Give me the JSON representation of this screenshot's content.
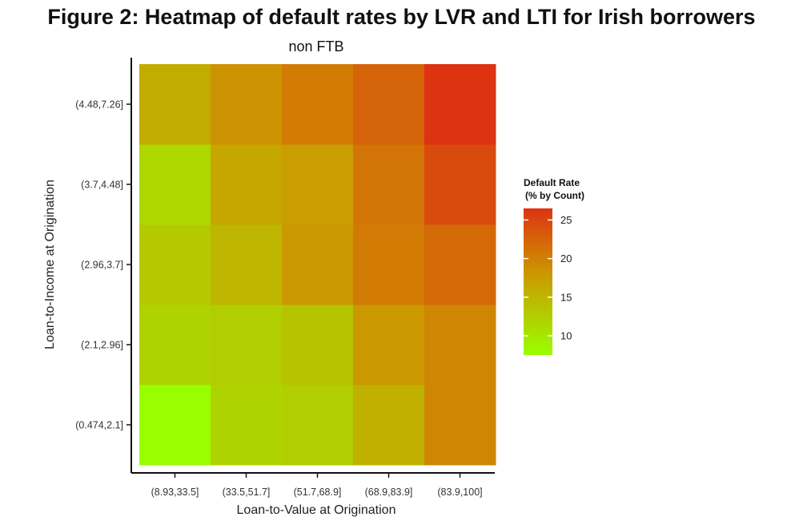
{
  "chart_data": {
    "type": "heatmap",
    "title": "Figure 2: Heatmap of default rates by LVR and LTI for Irish borrowers",
    "subtitle": "non FTB",
    "xlabel": "Loan-to-Value at Origination",
    "ylabel": "Loan-to-Income at Origination",
    "x_categories": [
      "(8.93,33.5]",
      "(33.5,51.7]",
      "(51.7,68.9]",
      "(68.9,83.9]",
      "(83.9,100]"
    ],
    "y_categories": [
      "(0.474,2.1]",
      "(2.1,2.96]",
      "(2.96,3.7]",
      "(3.7,4.48]",
      "(4.48,7.26]"
    ],
    "values": [
      [
        7.5,
        12.0,
        12.5,
        15.5,
        19.5
      ],
      [
        12.0,
        12.5,
        13.5,
        18.0,
        19.5
      ],
      [
        13.0,
        15.0,
        18.0,
        20.5,
        22.0
      ],
      [
        11.5,
        16.5,
        17.5,
        21.0,
        24.5
      ],
      [
        16.0,
        18.5,
        20.5,
        22.5,
        26.5
      ]
    ],
    "legend": {
      "title_line1": "Default Rate",
      "title_line2": "(% by Count)",
      "ticks": [
        10,
        15,
        20,
        25
      ],
      "range": [
        7.5,
        26.5
      ],
      "placement": "right"
    },
    "colors": {
      "low": "#99ff00",
      "mid": "#cc9900",
      "high": "#dd3311"
    }
  }
}
